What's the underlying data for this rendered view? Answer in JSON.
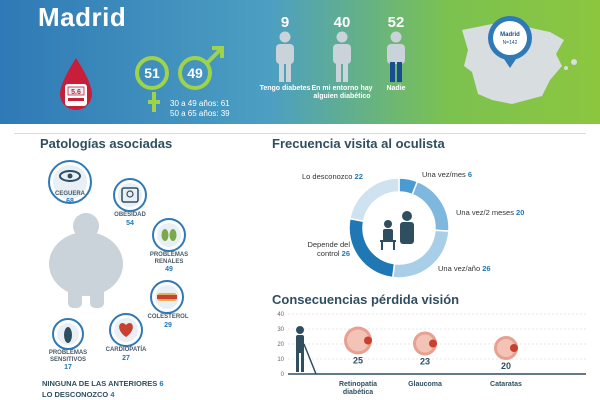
{
  "hero": {
    "city": "Madrid",
    "glucose": "5.6",
    "female_pct": "51",
    "male_pct": "49",
    "age_line1": "30 a 49 años: 61",
    "age_line2": "50 a 65 años: 39",
    "stats": [
      {
        "value": "9",
        "label": "Tengo diabetes"
      },
      {
        "value": "40",
        "label": "En mi entorno hay alguien diabético"
      },
      {
        "value": "52",
        "label": "Nadie"
      }
    ],
    "map_pin_city": "Madrid",
    "map_pin_n": "N=142",
    "colors": {
      "blue": "#2f79b6",
      "green": "#8cc63f"
    }
  },
  "patologias": {
    "title": "Patologías  asociadas",
    "items": [
      {
        "label": "CEGUERA",
        "value": "68",
        "icon": "eye-icon"
      },
      {
        "label": "OBESIDAD",
        "value": "54",
        "icon": "scale-icon"
      },
      {
        "label": "PROBLEMAS RENALES",
        "value": "49",
        "icon": "kidney-icon"
      },
      {
        "label": "COLESTEROL",
        "value": "29",
        "icon": "artery-icon"
      },
      {
        "label": "CARDIOPATÍA",
        "value": "27",
        "icon": "heart-icon"
      },
      {
        "label": "PROBLEMAS SENSITIVOS",
        "value": "17",
        "icon": "foot-icon"
      }
    ],
    "none_label": "NINGUNA DE LAS ANTERIORES",
    "none_value": "6",
    "unknown_label": "LO DESCONOZCO",
    "unknown_value": "4"
  },
  "frecuencia": {
    "title": "Frecuencia visita al oculista",
    "items": [
      {
        "label": "Lo desconozco",
        "value": "22"
      },
      {
        "label": "Una vez/mes",
        "value": "6"
      },
      {
        "label": "Una vez/2 meses",
        "value": "20"
      },
      {
        "label": "Una vez/año",
        "value": "26"
      },
      {
        "label": "Depende del control",
        "value": "26"
      }
    ]
  },
  "consecuencias": {
    "title": "Consecuencias pérdida visión",
    "ymax": 40,
    "yticks": [
      "40",
      "30",
      "20",
      "10",
      "0"
    ],
    "items": [
      {
        "label": "Retinopatía diabética",
        "value": "25"
      },
      {
        "label": "Glaucoma",
        "value": "23"
      },
      {
        "label": "Cataratas",
        "value": "20"
      }
    ]
  }
}
